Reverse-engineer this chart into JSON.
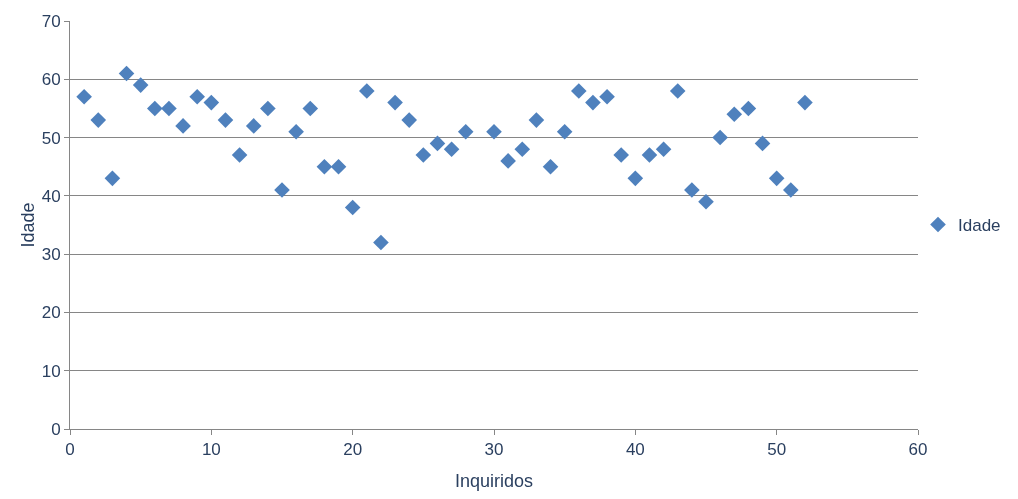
{
  "chart_data": {
    "type": "scatter",
    "xlabel": "Inquiridos",
    "ylabel": "Idade",
    "x": [
      1,
      2,
      3,
      4,
      5,
      6,
      7,
      8,
      9,
      10,
      11,
      12,
      13,
      14,
      15,
      16,
      17,
      18,
      19,
      20,
      21,
      22,
      23,
      24,
      25,
      26,
      27,
      28,
      30,
      31,
      32,
      33,
      34,
      35,
      36,
      37,
      38,
      39,
      40,
      41,
      42,
      43,
      44,
      45,
      46,
      47,
      48,
      49,
      50,
      51,
      52
    ],
    "series": [
      {
        "name": "Idade",
        "color": "#4f81bd",
        "values": [
          57,
          53,
          43,
          61,
          59,
          55,
          55,
          52,
          57,
          56,
          53,
          47,
          52,
          55,
          41,
          51,
          55,
          45,
          45,
          38,
          58,
          32,
          56,
          53,
          47,
          49,
          48,
          51,
          51,
          46,
          48,
          53,
          45,
          51,
          58,
          56,
          57,
          47,
          43,
          47,
          48,
          58,
          41,
          39,
          50,
          54,
          55,
          49,
          43,
          41,
          56
        ]
      }
    ],
    "xlim": [
      0,
      60
    ],
    "xticks": [
      0,
      10,
      20,
      30,
      40,
      50,
      60
    ],
    "ylim": [
      0,
      70
    ],
    "yticks": [
      0,
      10,
      20,
      30,
      40,
      50,
      60,
      70
    ],
    "grid": "y",
    "legend": "right",
    "marker": "diamond"
  }
}
